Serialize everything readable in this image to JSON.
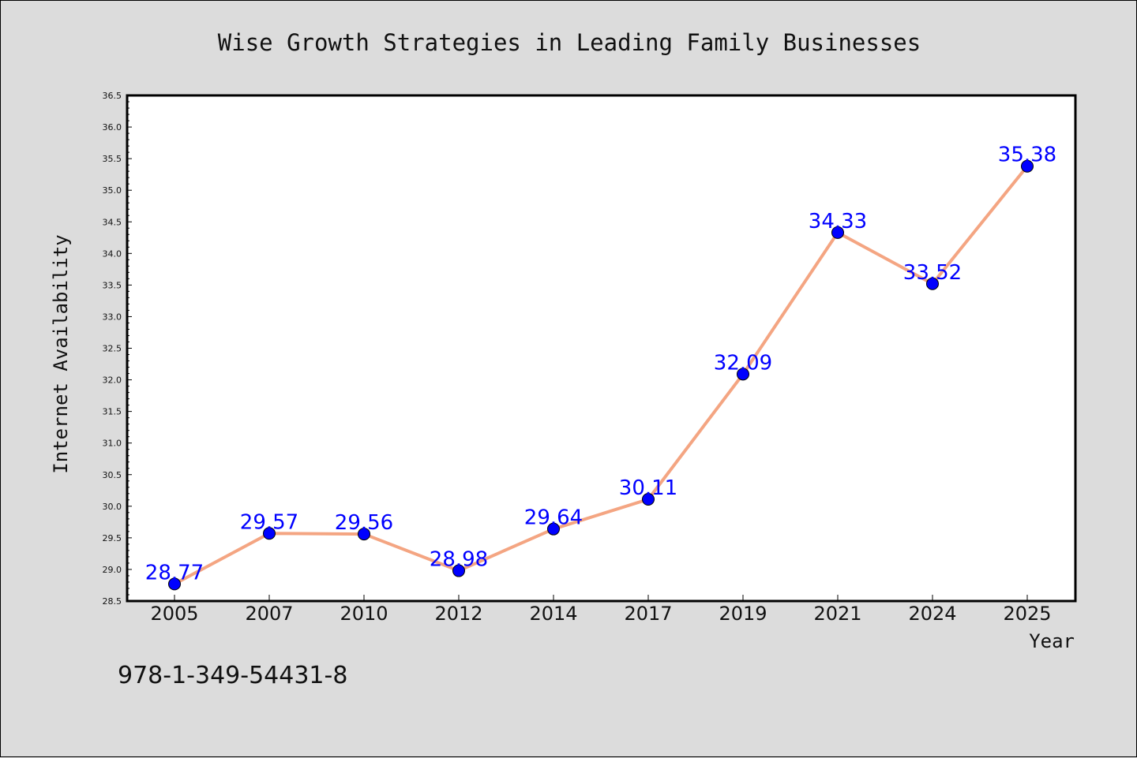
{
  "chart_data": {
    "type": "line",
    "title": "Wise Growth Strategies in Leading Family Businesses",
    "xlabel": "Year",
    "ylabel": "Internet Availability",
    "categories": [
      "2005",
      "2007",
      "2010",
      "2012",
      "2014",
      "2017",
      "2019",
      "2021",
      "2024",
      "2025"
    ],
    "series": [
      {
        "values": [
          28.77,
          29.57,
          29.56,
          28.98,
          29.64,
          30.11,
          32.09,
          34.33,
          33.52,
          35.38
        ]
      }
    ],
    "data_labels": [
      "28.77",
      "29.57",
      "29.56",
      "28.98",
      "29.64",
      "30.11",
      "32.09",
      "34.33",
      "33.52",
      "35.38"
    ],
    "ylim": [
      28.5,
      36.5
    ],
    "yticks": [
      "28.5",
      "29.0",
      "29.5",
      "30.0",
      "30.5",
      "31.0",
      "31.5",
      "32.0",
      "32.5",
      "33.0",
      "33.5",
      "34.0",
      "34.5",
      "35.0",
      "35.5",
      "36.0",
      "36.5"
    ],
    "grid": false,
    "legend": "none",
    "colors": {
      "line": "#f4a582",
      "marker": "#0000ff",
      "label": "#0000ff"
    }
  },
  "annotation": {
    "isbn": "978-1-349-54431-8"
  }
}
